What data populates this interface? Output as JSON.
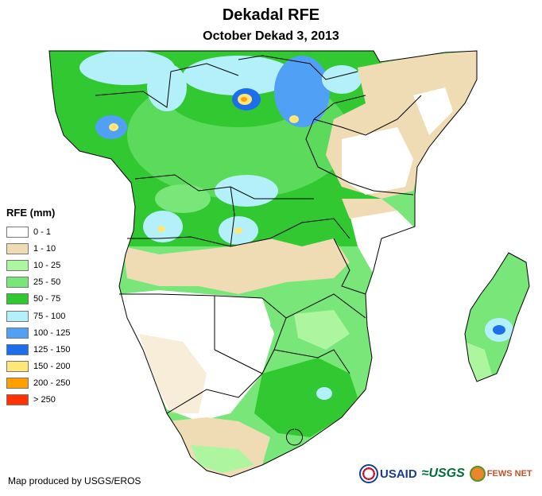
{
  "header": {
    "title": "Dekadal RFE",
    "subtitle": "October Dekad 3, 2013"
  },
  "legend": {
    "title": "RFE (mm)",
    "items": [
      {
        "label": "0 - 1",
        "color": "#ffffff"
      },
      {
        "label": "1 - 10",
        "color": "#f0dcb4"
      },
      {
        "label": "10 - 25",
        "color": "#aef5a0"
      },
      {
        "label": "25 - 50",
        "color": "#78e678"
      },
      {
        "label": "50 - 75",
        "color": "#32c832"
      },
      {
        "label": "75 - 100",
        "color": "#b4f0fa"
      },
      {
        "label": "100 - 125",
        "color": "#50a0f5"
      },
      {
        "label": "125 - 150",
        "color": "#1e6eeb"
      },
      {
        "label": "150 - 200",
        "color": "#ffe678"
      },
      {
        "label": "200 - 250",
        "color": "#ffa000"
      },
      {
        "label": "> 250",
        "color": "#ff3200"
      }
    ]
  },
  "footer": {
    "credit": "Map produced by USGS/EROS",
    "logos": {
      "usaid": "USAID",
      "usgs": "≈USGS",
      "fews": "FEWS NET"
    }
  }
}
